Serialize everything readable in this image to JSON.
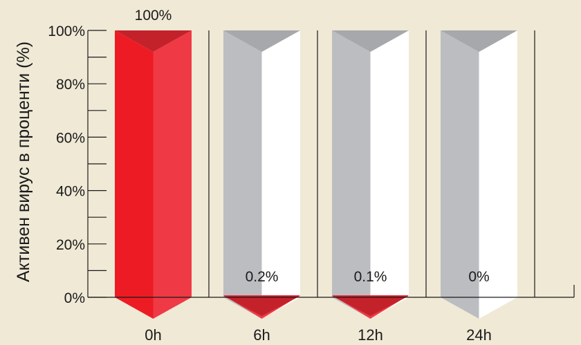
{
  "chart_data": {
    "type": "bar",
    "title": "",
    "xlabel": "",
    "ylabel": "Активен вирус в проценти (%)",
    "categories": [
      "0h",
      "6h",
      "12h",
      "24h"
    ],
    "values": [
      100,
      0.2,
      0.1,
      0
    ],
    "value_labels": [
      "100%",
      "0.2%",
      "0.1%",
      "0%"
    ],
    "ylim": [
      0,
      100
    ],
    "y_ticks": [
      0,
      20,
      40,
      60,
      80,
      100
    ],
    "y_tick_labels": [
      "0%",
      "20%",
      "40%",
      "60%",
      "80%",
      "100%"
    ],
    "grid": false,
    "colors": {
      "background": "#efe9d6",
      "active_dark": "#ed1c24",
      "active_light": "#ef3a45",
      "active_cap": "#c4222b",
      "empty_dark": "#bcbdc0",
      "empty_light": "#ffffff",
      "empty_cap": "#a7a8ab",
      "axis": "#1a1a1a"
    }
  }
}
